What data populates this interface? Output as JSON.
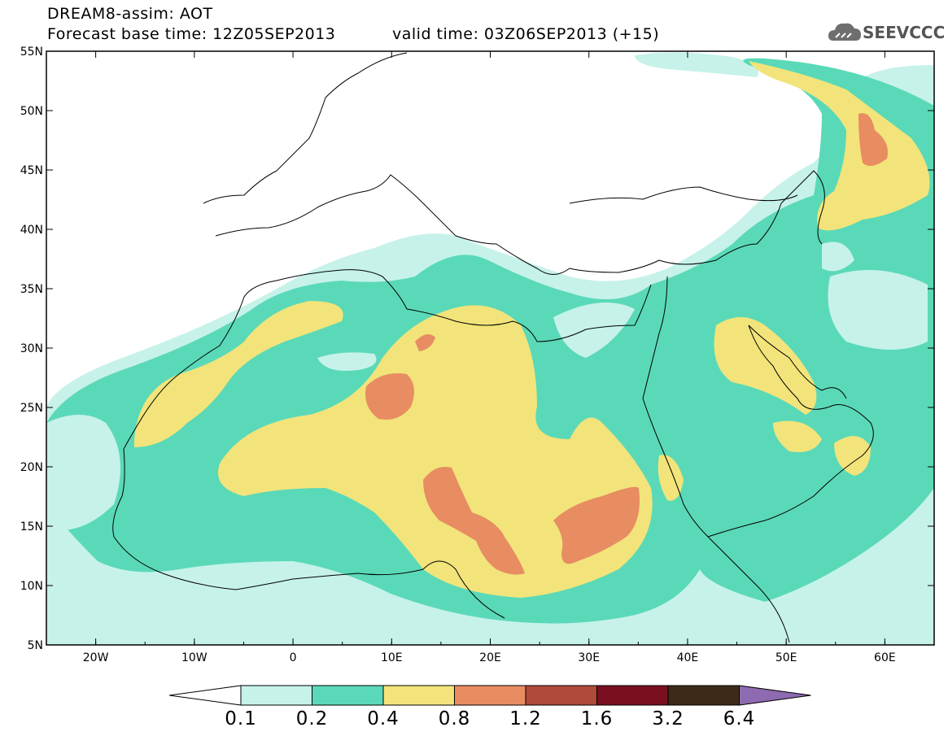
{
  "header": {
    "title": "DREAM8-assim: AOT",
    "base_time": "Forecast base time: 12Z05SEP2013",
    "valid_time": "valid time: 03Z06SEP2013 (+15)"
  },
  "logo": {
    "text": "SEEVCCC",
    "icon": "cloud-icon"
  },
  "map": {
    "lon_range": [
      -25,
      65
    ],
    "lat_range": [
      5,
      55
    ],
    "lon_ticks": [
      "20W",
      "10W",
      "0",
      "10E",
      "20E",
      "30E",
      "40E",
      "50E",
      "60E"
    ],
    "lat_ticks": [
      "55N",
      "50N",
      "45N",
      "40N",
      "35N",
      "30N",
      "25N",
      "20N",
      "15N",
      "10N",
      "5N"
    ]
  },
  "colorbar": {
    "labels": [
      "0.1",
      "0.2",
      "0.4",
      "0.8",
      "1.2",
      "1.6",
      "3.2",
      "6.4"
    ],
    "colors": [
      "#ffffff",
      "#c6f2ea",
      "#5ad9b8",
      "#f2e47a",
      "#e88c62",
      "#b04a3a",
      "#7a0f22",
      "#3d2a18",
      "#8e6ab0"
    ]
  }
}
